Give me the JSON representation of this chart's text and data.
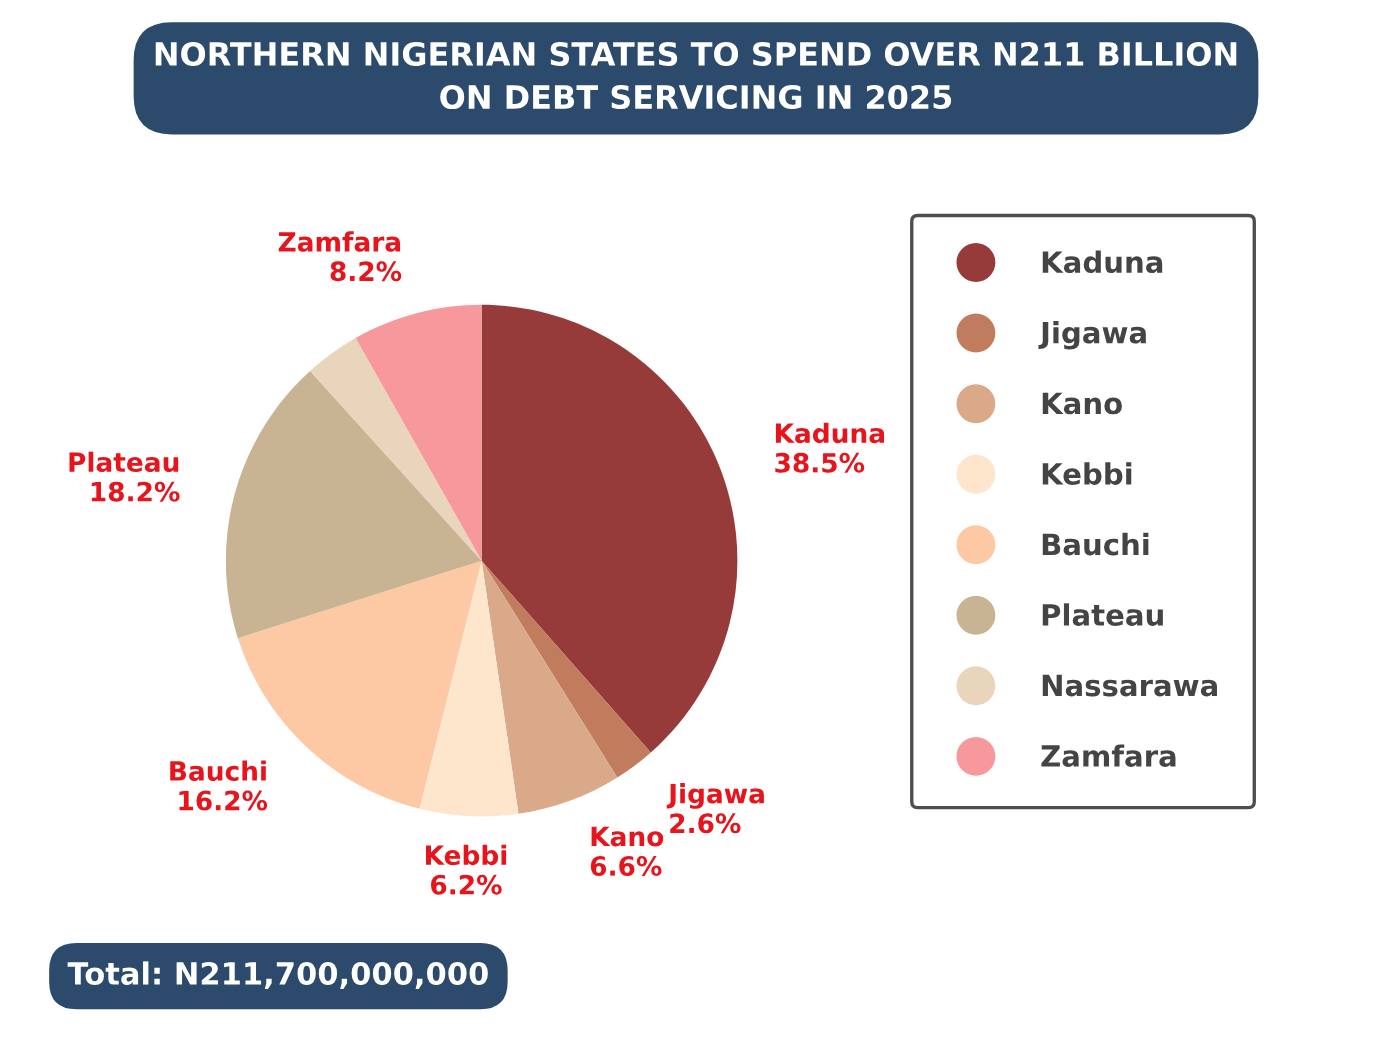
{
  "chart_data": {
    "type": "pie",
    "title": "NORTHERN NIGERIAN STATES TO SPEND OVER N211 BILLION\nON DEBT SERVICING IN 2025",
    "categories": [
      "Kaduna",
      "Jigawa",
      "Kano",
      "Kebbi",
      "Bauchi",
      "Plateau",
      "Nassarawa",
      "Zamfara"
    ],
    "values": [
      38.5,
      2.6,
      6.6,
      6.2,
      16.2,
      18.2,
      3.5,
      8.2
    ],
    "value_labels": [
      "38.5%",
      "2.6%",
      "6.6%",
      "6.2%",
      "16.2%",
      "18.2%",
      null,
      "8.2%"
    ],
    "colors": [
      "#963a3a",
      "#c07c5c",
      "#d9a98a",
      "#fde6cc",
      "#fdc9a4",
      "#c8b393",
      "#e8d5bc",
      "#f7989c"
    ],
    "legend": "right",
    "annotations": [
      "Total: N211,700,000,000"
    ]
  }
}
